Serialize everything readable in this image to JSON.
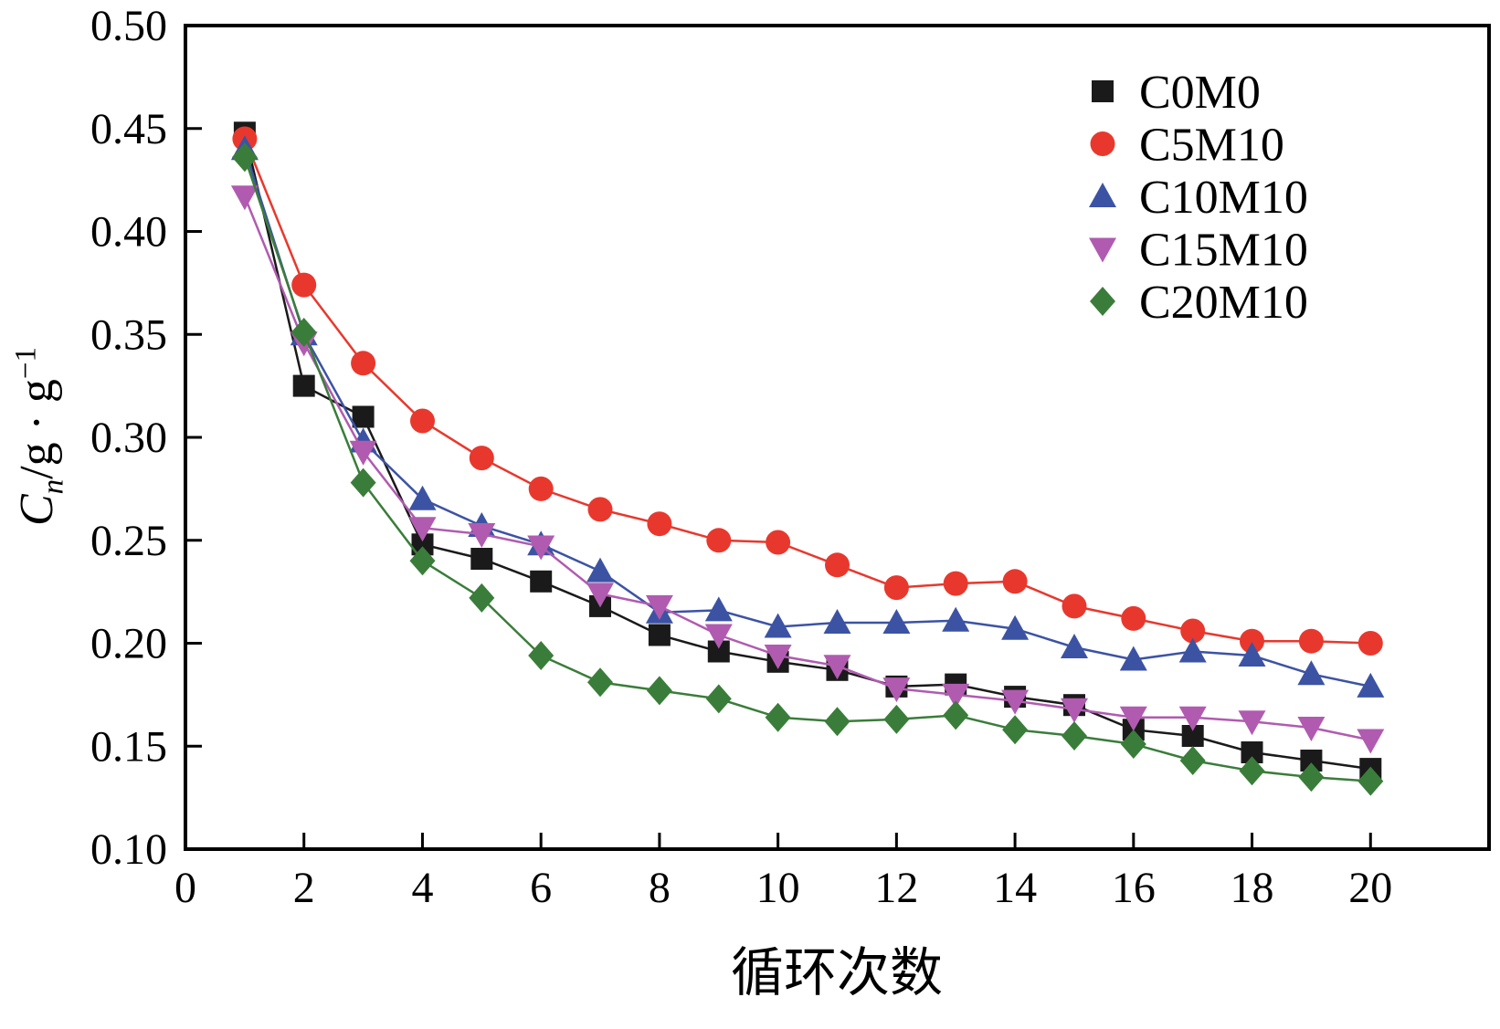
{
  "chart_data": {
    "type": "line",
    "title": "",
    "xlabel": "循环次数",
    "ylabel": {
      "c": "C",
      "sub": "n",
      "rest": "/g · g",
      "sup": "−1"
    },
    "xlim": [
      0,
      22
    ],
    "ylim": [
      0.1,
      0.5
    ],
    "xticks": [
      0,
      2,
      4,
      6,
      8,
      10,
      12,
      14,
      16,
      18,
      20
    ],
    "yticks": [
      0.1,
      0.15,
      0.2,
      0.25,
      0.3,
      0.35,
      0.4,
      0.45,
      0.5
    ],
    "grid": false,
    "legend_position": "top-right",
    "x": [
      1,
      2,
      3,
      4,
      5,
      6,
      7,
      8,
      9,
      10,
      11,
      12,
      13,
      14,
      15,
      16,
      17,
      18,
      19,
      20
    ],
    "series": [
      {
        "name": "C0M0",
        "marker": "square",
        "color": "#1a1a1a",
        "values": [
          0.448,
          0.325,
          0.31,
          0.248,
          0.241,
          0.23,
          0.218,
          0.204,
          0.196,
          0.191,
          0.187,
          0.179,
          0.18,
          0.174,
          0.17,
          0.158,
          0.155,
          0.147,
          0.143,
          0.139
        ]
      },
      {
        "name": "C5M10",
        "marker": "circle",
        "color": "#e8382d",
        "values": [
          0.445,
          0.374,
          0.336,
          0.308,
          0.29,
          0.275,
          0.265,
          0.258,
          0.25,
          0.249,
          0.238,
          0.227,
          0.229,
          0.23,
          0.218,
          0.212,
          0.206,
          0.201,
          0.201,
          0.2
        ]
      },
      {
        "name": "C10M10",
        "marker": "triangle-up",
        "color": "#3c53a4",
        "values": [
          0.44,
          0.35,
          0.298,
          0.27,
          0.257,
          0.248,
          0.235,
          0.215,
          0.216,
          0.208,
          0.21,
          0.21,
          0.211,
          0.207,
          0.198,
          0.192,
          0.196,
          0.194,
          0.185,
          0.179
        ]
      },
      {
        "name": "C15M10",
        "marker": "triangle-down",
        "color": "#b05bb0",
        "values": [
          0.417,
          0.346,
          0.293,
          0.256,
          0.253,
          0.247,
          0.224,
          0.218,
          0.204,
          0.194,
          0.189,
          0.178,
          0.175,
          0.172,
          0.168,
          0.164,
          0.164,
          0.162,
          0.159,
          0.153
        ]
      },
      {
        "name": "C20M10",
        "marker": "diamond",
        "color": "#3a7d3a",
        "values": [
          0.436,
          0.351,
          0.278,
          0.24,
          0.222,
          0.194,
          0.181,
          0.177,
          0.173,
          0.164,
          0.162,
          0.163,
          0.165,
          0.158,
          0.155,
          0.151,
          0.143,
          0.138,
          0.135,
          0.133
        ]
      }
    ]
  }
}
